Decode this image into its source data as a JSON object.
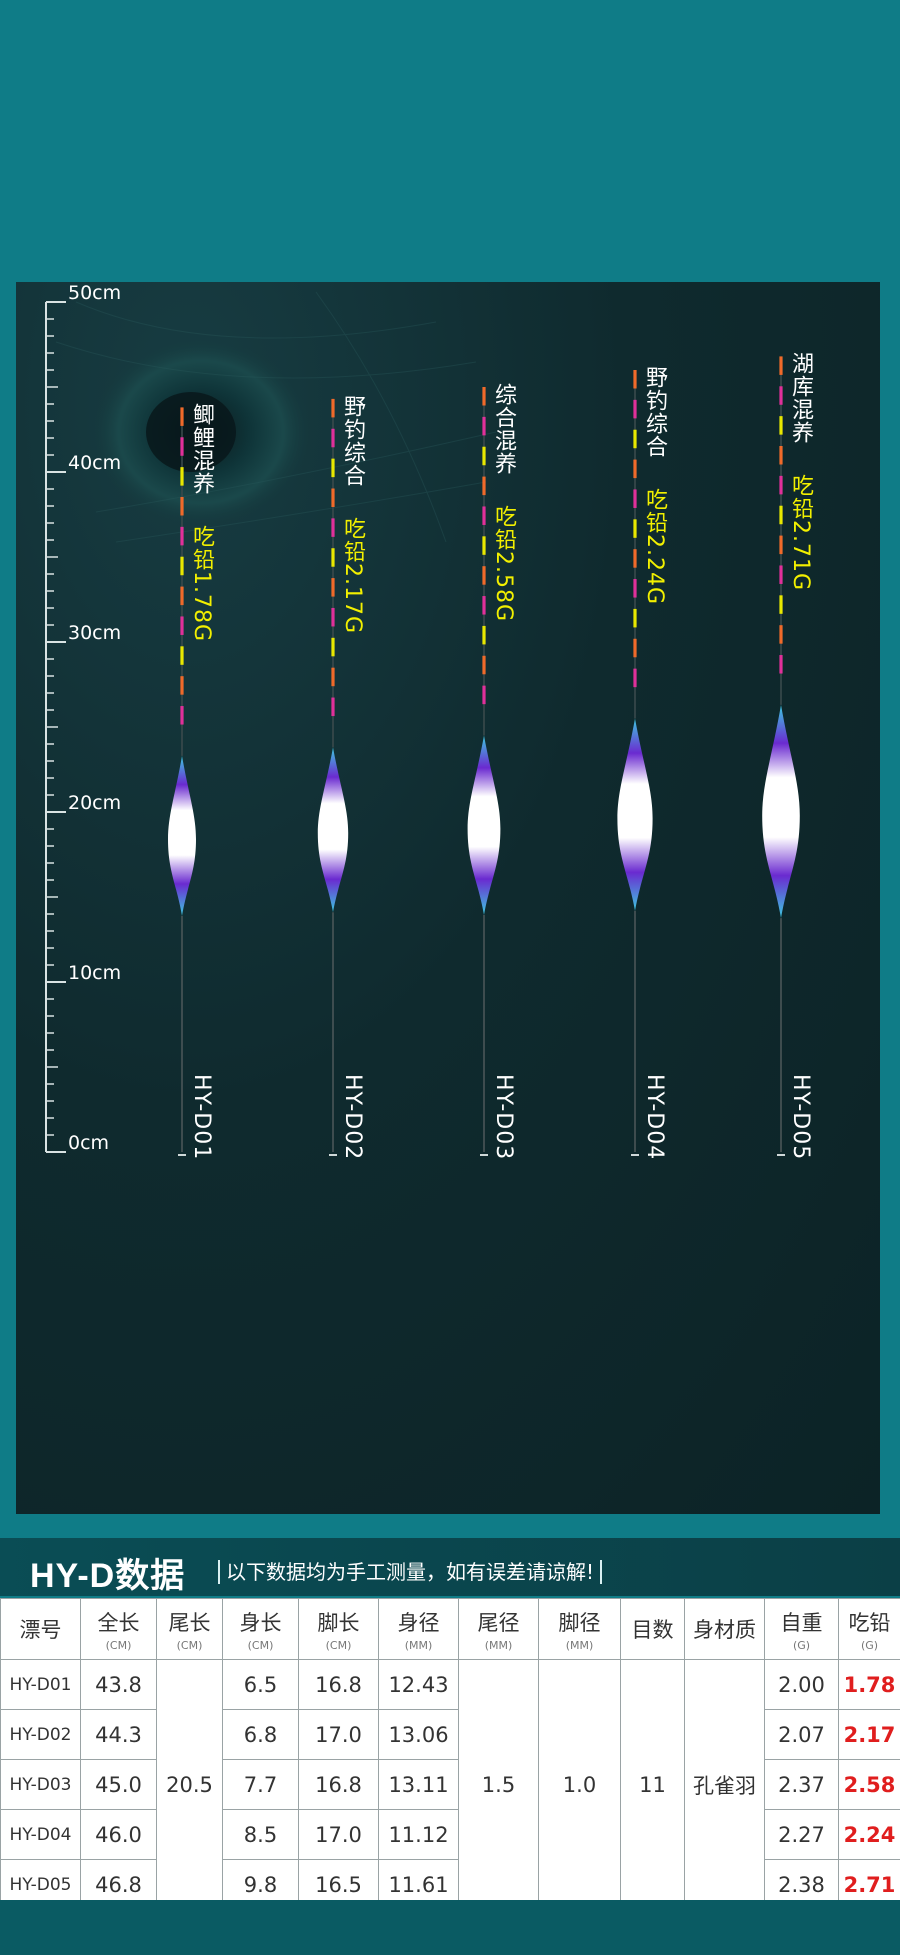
{
  "ruler": {
    "labels": [
      {
        "value": 50,
        "text": "50cm"
      },
      {
        "value": 40,
        "text": "40cm"
      },
      {
        "value": 30,
        "text": "30cm"
      },
      {
        "value": 20,
        "text": "20cm"
      },
      {
        "value": 10,
        "text": "10cm"
      },
      {
        "value": 0,
        "text": "0cm"
      }
    ],
    "max_cm": 50
  },
  "floats": [
    {
      "model": "HY-D01",
      "use": "鲫鲤混养",
      "lead": "吃铅1.78G",
      "total_cm": 43.8
    },
    {
      "model": "HY-D02",
      "use": "野钓综合",
      "lead": "吃铅2.17G",
      "total_cm": 44.3
    },
    {
      "model": "HY-D03",
      "use": "综合混养",
      "lead": "吃铅2.58G",
      "total_cm": 45.0
    },
    {
      "model": "HY-D04",
      "use": "野钓综合",
      "lead": "吃铅2.24G",
      "total_cm": 46.0
    },
    {
      "model": "HY-D05",
      "use": "湖库混养",
      "lead": "吃铅2.71G",
      "total_cm": 46.8
    }
  ],
  "colors": {
    "bg": "#0f7c87",
    "panel": "#0f2a2e",
    "yellow": "#f2f000",
    "lead_red": "#e01e1e",
    "band_orange": "#f06a2a",
    "band_magenta": "#e0309a",
    "band_yellow": "#e8e800"
  },
  "spec": {
    "title": "HY-D数据",
    "note": "以下数据均为手工测量，如有误差请谅解!",
    "headers": [
      {
        "label": "漂号",
        "unit": ""
      },
      {
        "label": "全长",
        "unit": "(CM)"
      },
      {
        "label": "尾长",
        "unit": "(CM)"
      },
      {
        "label": "身长",
        "unit": "(CM)"
      },
      {
        "label": "脚长",
        "unit": "(CM)"
      },
      {
        "label": "身径",
        "unit": "(MM)"
      },
      {
        "label": "尾径",
        "unit": "(MM)"
      },
      {
        "label": "脚径",
        "unit": "(MM)"
      },
      {
        "label": "目数",
        "unit": ""
      },
      {
        "label": "身材质",
        "unit": ""
      },
      {
        "label": "自重",
        "unit": "(G)"
      },
      {
        "label": "吃铅",
        "unit": "(G)"
      }
    ],
    "shared": {
      "tail_length": "20.5",
      "tail_dia": "1.5",
      "foot_dia": "1.0",
      "marks": "11",
      "material": "孔雀羽"
    },
    "rows": [
      {
        "model": "HY-D01",
        "total": "43.8",
        "body": "6.5",
        "foot": "16.8",
        "body_dia": "12.43",
        "weight": "2.00",
        "lead": "1.78"
      },
      {
        "model": "HY-D02",
        "total": "44.3",
        "body": "6.8",
        "foot": "17.0",
        "body_dia": "13.06",
        "weight": "2.07",
        "lead": "2.17"
      },
      {
        "model": "HY-D03",
        "total": "45.0",
        "body": "7.7",
        "foot": "16.8",
        "body_dia": "13.11",
        "weight": "2.37",
        "lead": "2.58"
      },
      {
        "model": "HY-D04",
        "total": "46.0",
        "body": "8.5",
        "foot": "17.0",
        "body_dia": "11.12",
        "weight": "2.27",
        "lead": "2.24"
      },
      {
        "model": "HY-D05",
        "total": "46.8",
        "body": "9.8",
        "foot": "16.5",
        "body_dia": "11.61",
        "weight": "2.38",
        "lead": "2.71"
      }
    ]
  }
}
